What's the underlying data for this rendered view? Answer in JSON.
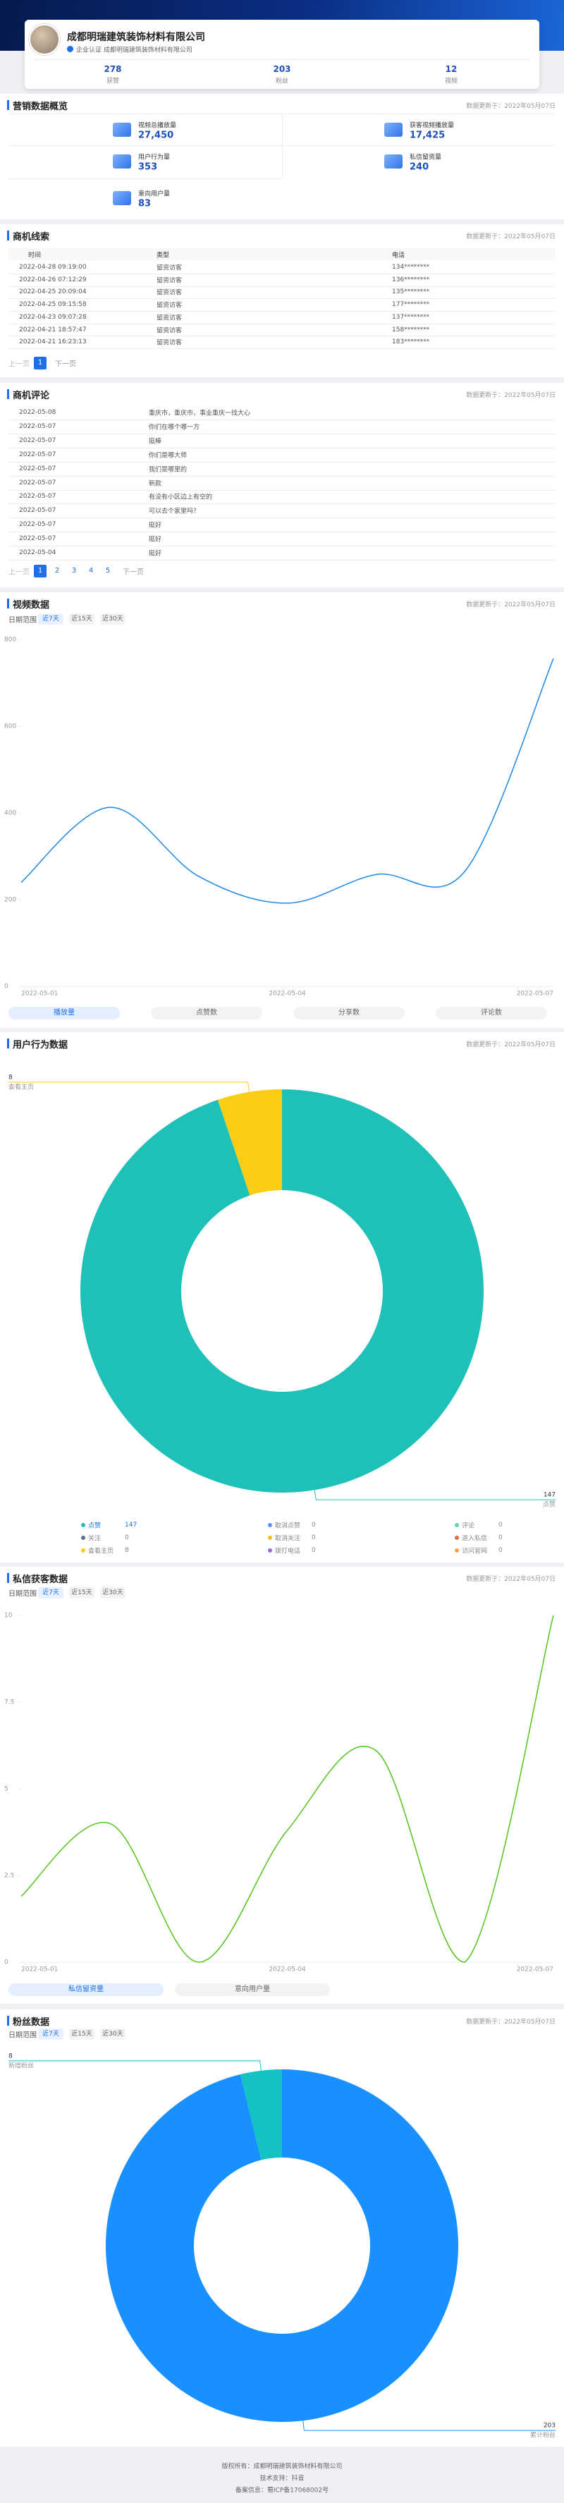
{
  "header": {
    "company": "成都明瑞建筑装饰材料有限公司",
    "cert": "企业认证 成都明瑞建筑装饰材料有限公司",
    "stats": [
      {
        "value": "278",
        "label": "获赞"
      },
      {
        "value": "203",
        "label": "粉丝"
      },
      {
        "value": "12",
        "label": "视频"
      }
    ]
  },
  "overview": {
    "title": "营销数据概览",
    "updated": "数据更新于：2022年05月07日",
    "items": [
      {
        "label": "视频总播放量",
        "value": "27,450"
      },
      {
        "label": "获客视频播放量",
        "value": "17,425"
      },
      {
        "label": "用户行为量",
        "value": "353"
      },
      {
        "label": "私信留资量",
        "value": "240"
      },
      {
        "label": "意向用户量",
        "value": "83"
      }
    ]
  },
  "leads": {
    "title": "商机线索",
    "updated": "数据更新于：2022年05月07日",
    "columns": [
      "时间",
      "类型",
      "电话"
    ],
    "rows": [
      [
        "2022-04-28 09:19:00",
        "留资访客",
        "134********"
      ],
      [
        "2022-04-26 07:12:29",
        "留资访客",
        "136********"
      ],
      [
        "2022-04-25 20:09:04",
        "留资访客",
        "135********"
      ],
      [
        "2022-04-25 09:15:58",
        "留资访客",
        "177********"
      ],
      [
        "2022-04-23 09:07:28",
        "留资访客",
        "137********"
      ],
      [
        "2022-04-21 18:57:47",
        "留资访客",
        "158********"
      ],
      [
        "2022-04-21 16:23:13",
        "留资访客",
        "183********"
      ]
    ],
    "pagination": {
      "prev": "上一页",
      "pages": [
        "1"
      ],
      "next": "下一页"
    }
  },
  "comments": {
    "title": "商机评论",
    "updated": "数据更新于：2022年05月07日",
    "rows": [
      [
        "2022-05-08",
        "重庆市，重庆市，事业重庆一找大心"
      ],
      [
        "2022-05-07",
        "你们在哪个哪一方"
      ],
      [
        "2022-05-07",
        "挺棒"
      ],
      [
        "2022-05-07",
        "你们是哪大师"
      ],
      [
        "2022-05-07",
        "我们是哪里的"
      ],
      [
        "2022-05-07",
        "新款"
      ],
      [
        "2022-05-07",
        "有没有小区边上有空的"
      ],
      [
        "2022-05-07",
        "可以去个家里吗？"
      ],
      [
        "2022-05-07",
        "挺好"
      ],
      [
        "2022-05-07",
        "挺好"
      ],
      [
        "2022-05-04",
        "挺好"
      ]
    ],
    "pagination": {
      "prev": "上一页",
      "pages": [
        "1",
        "2",
        "3",
        "4",
        "5"
      ],
      "next": "下一页"
    }
  },
  "video": {
    "updated": "数据更新于：2022年05月07日",
    "filter_label": "日期范围",
    "filters": [
      "近7天",
      "近15天",
      "近30天"
    ],
    "tabs": [
      "播放量",
      "点赞数",
      "分享数",
      "评论数"
    ]
  },
  "behavior": {
    "updated": "数据更新于：2022年05月07日"
  },
  "private": {
    "updated": "数据更新于：2022年05月07日",
    "filter_label": "日期范围",
    "filters": [
      "近7天",
      "近15天",
      "近30天"
    ],
    "tabs": [
      "私信留资量",
      "意向用户量"
    ]
  },
  "fans": {
    "updated": "数据更新于：2022年05月07日",
    "filter_label": "日期范围",
    "filters": [
      "近7天",
      "近15天",
      "近30天"
    ]
  },
  "footer": {
    "lines": [
      "版权所有：成都明瑞建筑装饰材料有限公司",
      "技术支持：抖音",
      "备案信息：蜀ICP备17068002号"
    ]
  },
  "chart_data": [
    {
      "type": "line",
      "title": "视频数据",
      "categories": [
        "2022-05-01",
        null,
        null,
        "2022-05-04",
        null,
        null,
        "2022-05-07"
      ],
      "series": [
        {
          "color": "#1e88e5",
          "values": [
            240,
            413,
            254,
            192,
            258,
            265,
            756
          ]
        }
      ],
      "ylim": [
        0,
        800
      ],
      "yticks": [
        0,
        200,
        400,
        600,
        800
      ],
      "grid": false
    },
    {
      "type": "pie",
      "title": "用户行为数据",
      "donut": true,
      "categories": [
        "点赞",
        "取消点赞",
        "评论",
        "关注",
        "取消关注",
        "进入私信",
        "查看主页",
        "拨打电话",
        "访问官网"
      ],
      "values": [
        147,
        0,
        0,
        0,
        0,
        0,
        8,
        0,
        0
      ],
      "colors": [
        "#1ec0b8",
        "#5b8ff9",
        "#5ad8a6",
        "#5d7092",
        "#f6bd16",
        "#e8684a",
        "#facc14",
        "#9270ca",
        "#ff9d4d"
      ]
    },
    {
      "type": "line",
      "title": "私信获客数据",
      "categories": [
        "2022-05-01",
        null,
        null,
        "2022-05-04",
        null,
        null,
        "2022-05-07"
      ],
      "series": [
        {
          "color": "#52c41a",
          "values": [
            1.9,
            4.0,
            0,
            3.8,
            6.1,
            0,
            10
          ]
        }
      ],
      "ylim": [
        0,
        10
      ],
      "yticks": [
        0,
        2.5,
        5,
        7.5,
        10
      ],
      "grid": false
    },
    {
      "type": "pie",
      "title": "粉丝数据",
      "donut": true,
      "categories": [
        "累计粉丝",
        "新增粉丝"
      ],
      "values": [
        203,
        8
      ],
      "colors": [
        "#1890ff",
        "#13c2c2"
      ]
    }
  ]
}
